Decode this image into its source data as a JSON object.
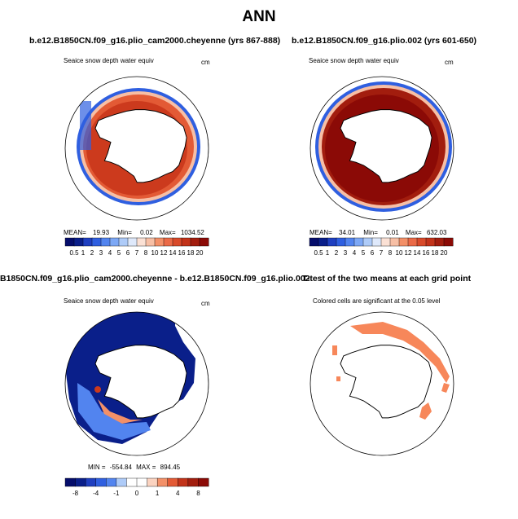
{
  "page_title": "ANN",
  "colors": {
    "blue_dark": "#0a1f8a",
    "blue": "#2f5fe0",
    "white": "#ffffff",
    "orange": "#f39068",
    "red": "#cc3a1d",
    "red_dark": "#8b0a06",
    "ttest_fill": "#f7875a"
  },
  "chart_data": [
    {
      "type": "heatmap",
      "projection": "south-polar-stereographic",
      "title": "b.e12.B1850CN.f09_g16.plio_cam2000.cheyenne (yrs 867-888)",
      "subtitle": "Seaice snow depth water equiv",
      "units": "cm",
      "stats": {
        "mean_label": "MEAN=",
        "mean": "19.93",
        "min_label": "Min=",
        "min": "0.02",
        "max_label": "Max=",
        "max": "1034.52"
      },
      "colorbar": {
        "labels": [
          "0.5",
          "1",
          "2",
          "3",
          "4",
          "5",
          "6",
          "7",
          "8",
          "10",
          "12",
          "14",
          "16",
          "18",
          "20"
        ],
        "colors": [
          "#050d6b",
          "#0a1f8a",
          "#1f3fc0",
          "#2f5fe0",
          "#5284ef",
          "#7da8f5",
          "#aecbf8",
          "#dfe9fb",
          "#fbe1d5",
          "#f7bfa5",
          "#f39068",
          "#ea6a47",
          "#d84a2a",
          "#c2331a",
          "#a21d0e",
          "#8b0a06"
        ]
      }
    },
    {
      "type": "heatmap",
      "projection": "south-polar-stereographic",
      "title": "b.e12.B1850CN.f09_g16.plio.002 (yrs 601-650)",
      "subtitle": "Seaice snow depth water equiv",
      "units": "cm",
      "stats": {
        "mean_label": "MEAN=",
        "mean": "34.01",
        "min_label": "Min=",
        "min": "0.01",
        "max_label": "Max=",
        "max": "632.03"
      },
      "colorbar": {
        "labels": [
          "0.5",
          "1",
          "2",
          "3",
          "4",
          "5",
          "6",
          "7",
          "8",
          "10",
          "12",
          "14",
          "16",
          "18",
          "20"
        ],
        "colors": [
          "#050d6b",
          "#0a1f8a",
          "#1f3fc0",
          "#2f5fe0",
          "#5284ef",
          "#7da8f5",
          "#aecbf8",
          "#dfe9fb",
          "#fbe1d5",
          "#f7bfa5",
          "#f39068",
          "#ea6a47",
          "#d84a2a",
          "#c2331a",
          "#a21d0e",
          "#8b0a06"
        ]
      }
    },
    {
      "type": "heatmap",
      "projection": "south-polar-stereographic",
      "title": "B1850CN.f09_g16.plio_cam2000.cheyenne - b.e12.B1850CN.f09_g16.plio.002",
      "subtitle": "Seaice snow depth water equiv",
      "units": "cm",
      "stats": {
        "min_label": "MIN =",
        "min": "-554.84",
        "max_label": "MAX =",
        "max": "894.45"
      },
      "colorbar": {
        "labels": [
          "-8",
          "-4",
          "-1",
          "0",
          "1",
          "4",
          "8"
        ],
        "colors": [
          "#050d6b",
          "#0a1f8a",
          "#1f3fc0",
          "#2f5fe0",
          "#5284ef",
          "#aecbf8",
          "#ffffff",
          "#ffffff",
          "#fbd3c0",
          "#f39068",
          "#e35a35",
          "#c2331a",
          "#a21d0e",
          "#8b0a06"
        ]
      }
    },
    {
      "type": "heatmap",
      "projection": "south-polar-stereographic",
      "title": "T-test of the two means at each grid point",
      "subtitle": "Colored cells are significant at the 0.05 level"
    }
  ]
}
